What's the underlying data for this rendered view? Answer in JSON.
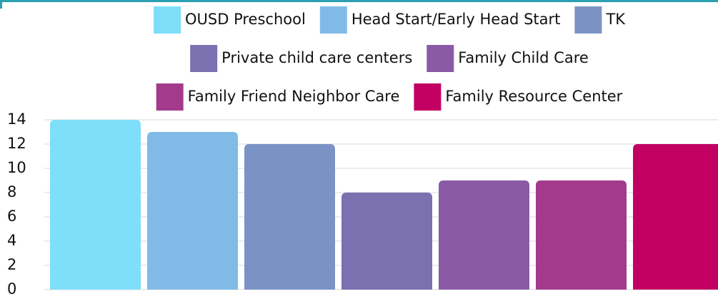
{
  "chart_data": {
    "type": "bar",
    "series": [
      {
        "name": "OUSD Preschool",
        "color": "#7ddff9",
        "values": [
          14
        ]
      },
      {
        "name": "Head Start/Early Head Start",
        "color": "#80bbe8",
        "values": [
          13
        ]
      },
      {
        "name": "TK",
        "color": "#7b93c4",
        "values": [
          12
        ]
      },
      {
        "name": "Private child care centers",
        "color": "#7b70b0",
        "values": [
          8
        ]
      },
      {
        "name": "Family Child Care",
        "color": "#8a5aa6",
        "values": [
          9
        ]
      },
      {
        "name": "Family Friend Neighbor Care",
        "color": "#a33a8c",
        "values": [
          9
        ]
      },
      {
        "name": "Family Resource Center",
        "color": "#c20063",
        "values": [
          12
        ]
      }
    ],
    "ylim": [
      0,
      14
    ],
    "yticks": [
      0,
      2,
      4,
      6,
      8,
      10,
      12,
      14
    ],
    "grid": true,
    "legend": "top"
  }
}
